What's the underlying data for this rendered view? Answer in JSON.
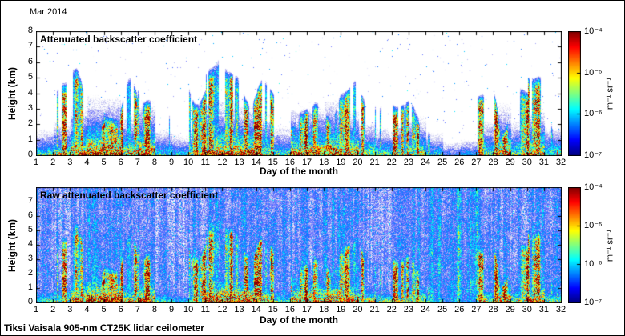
{
  "header": {
    "date_label": "Mar 2014"
  },
  "footer": {
    "instrument_label": "Tiksi Vaisala 905-nm CT25K lidar ceilometer"
  },
  "colorbar": {
    "tick_labels": [
      "10⁻⁴",
      "10⁻⁵",
      "10⁻⁶",
      "10⁻⁷"
    ],
    "unit": "m⁻¹ sr⁻¹",
    "colormap": "jet"
  },
  "panels": [
    {
      "title": "Attenuated backscatter coefficient",
      "xlabel": "Day of the month",
      "ylabel": "Height (km)",
      "y_ticks": [
        0,
        1,
        2,
        3,
        4,
        5,
        6,
        7,
        8
      ]
    },
    {
      "title": "Raw attenuated backscatter coefficient",
      "xlabel": "Day of the month",
      "ylabel": "Height (km)",
      "y_ticks": [
        0,
        1,
        2,
        3,
        4,
        5,
        6,
        7
      ]
    }
  ],
  "chart_data": {
    "type": "heatmap",
    "title": "Mar 2014 — Tiksi Vaisala 905-nm CT25K lidar ceilometer",
    "x": {
      "label": "Day of the month",
      "range": [
        1,
        32
      ],
      "ticks": [
        1,
        2,
        3,
        4,
        5,
        6,
        7,
        8,
        9,
        10,
        11,
        12,
        13,
        14,
        15,
        16,
        17,
        18,
        19,
        20,
        21,
        22,
        23,
        24,
        25,
        26,
        27,
        28,
        29,
        30,
        31,
        32
      ]
    },
    "y": {
      "label": "Height (km)",
      "range": [
        0,
        8
      ]
    },
    "color_scale": {
      "type": "log",
      "min": 1e-07,
      "max": 0.0001,
      "unit": "m⁻¹ sr⁻¹",
      "colormap": "jet"
    },
    "panel_types": [
      "attenuated backscatter",
      "raw attenuated backscatter"
    ],
    "surface_intensity": [
      0.45,
      0.6,
      0.85,
      1.0,
      1.0,
      0.7,
      0.9,
      0.45,
      0.35,
      0.5,
      0.95,
      0.9,
      0.85,
      0.7,
      0.5,
      0.8,
      0.85,
      0.95,
      0.8,
      0.6,
      0.5,
      0.6,
      0.65,
      0.4,
      0.25,
      0.3,
      0.6,
      0.85,
      0.6,
      0.8,
      0.5
    ],
    "cloud_activity": [
      0.15,
      0.5,
      0.65,
      0.6,
      0.75,
      0.7,
      0.85,
      0.3,
      0.2,
      0.6,
      0.9,
      0.7,
      0.6,
      0.65,
      0.3,
      0.8,
      0.7,
      0.75,
      0.7,
      0.5,
      0.45,
      0.65,
      0.6,
      0.3,
      0.15,
      0.2,
      0.65,
      0.8,
      0.55,
      0.85,
      0.45
    ],
    "band_intensity": [
      0.5,
      0.55,
      0.6,
      0.65,
      0.7,
      0.55,
      0.65,
      0.45,
      0.4,
      0.55,
      0.7,
      0.6,
      0.55,
      0.6,
      0.5,
      0.65,
      0.6,
      0.65,
      0.6,
      0.5,
      0.5,
      0.6,
      0.65,
      0.8,
      0.95,
      0.9,
      0.8,
      0.6,
      0.55,
      0.7,
      0.5
    ],
    "description": "Two stacked time-height heatmaps of lidar ceilometer backscatter for March 2014. Top: processed attenuated backscatter (white background, boundary-layer signal 0-1 km strongest on days 3-5, 11-14, 16-19, 28, 30; vertical cloud/precipitation streaks reaching 3-7 km on many days). Bottom: raw attenuated backscatter (speckled noise everywhere, full-height blue/green noise bands, densest on days 24-27). Color is log-scaled 1e-7 to 1e-4 m^-1 sr^-1 using a jet colormap."
  }
}
